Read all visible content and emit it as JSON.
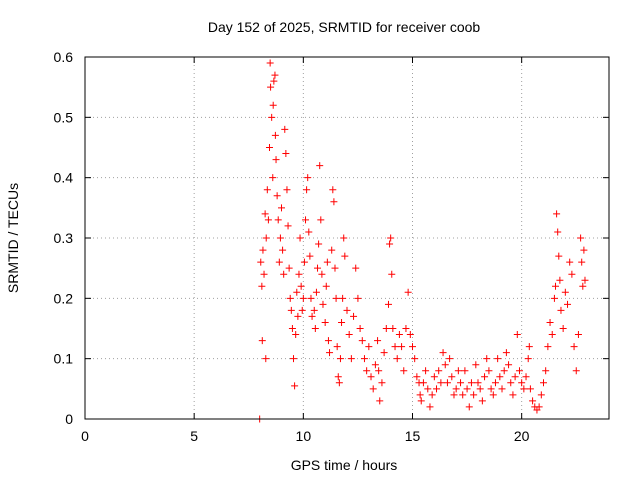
{
  "chart_data": {
    "type": "scatter",
    "title": "Day 152 of 2025, SRMTID for receiver coob",
    "xlabel": "GPS time / hours",
    "ylabel": "SRMTID / TECUs",
    "xlim": [
      0,
      24
    ],
    "ylim": [
      0,
      0.6
    ],
    "xticks": [
      0,
      5,
      10,
      15,
      20
    ],
    "xtick_labels": [
      "0",
      "5",
      "10",
      "15",
      "20"
    ],
    "yticks": [
      0,
      0.1,
      0.2,
      0.3,
      0.4,
      0.5,
      0.6
    ],
    "ytick_labels": [
      "0",
      "0.1",
      "0.2",
      "0.3",
      "0.4",
      "0.5",
      "0.6"
    ],
    "grid": true,
    "marker": "+",
    "color": "#ff0000",
    "series": [
      {
        "name": "SRMTID",
        "points": [
          [
            8.0,
            0.0
          ],
          [
            8.05,
            0.26
          ],
          [
            8.1,
            0.22
          ],
          [
            8.12,
            0.13
          ],
          [
            8.15,
            0.28
          ],
          [
            8.2,
            0.24
          ],
          [
            8.25,
            0.34
          ],
          [
            8.28,
            0.1
          ],
          [
            8.3,
            0.3
          ],
          [
            8.35,
            0.38
          ],
          [
            8.4,
            0.33
          ],
          [
            8.45,
            0.45
          ],
          [
            8.48,
            0.59
          ],
          [
            8.5,
            0.55
          ],
          [
            8.55,
            0.5
          ],
          [
            8.6,
            0.4
          ],
          [
            8.62,
            0.52
          ],
          [
            8.65,
            0.56
          ],
          [
            8.7,
            0.57
          ],
          [
            8.72,
            0.47
          ],
          [
            8.75,
            0.43
          ],
          [
            8.8,
            0.37
          ],
          [
            8.85,
            0.33
          ],
          [
            8.9,
            0.26
          ],
          [
            8.95,
            0.3
          ],
          [
            9.0,
            0.35
          ],
          [
            9.05,
            0.28
          ],
          [
            9.1,
            0.24
          ],
          [
            9.15,
            0.48
          ],
          [
            9.2,
            0.44
          ],
          [
            9.25,
            0.38
          ],
          [
            9.3,
            0.32
          ],
          [
            9.35,
            0.25
          ],
          [
            9.4,
            0.2
          ],
          [
            9.45,
            0.18
          ],
          [
            9.5,
            0.15
          ],
          [
            9.55,
            0.1
          ],
          [
            9.6,
            0.055
          ],
          [
            9.65,
            0.14
          ],
          [
            9.7,
            0.21
          ],
          [
            9.75,
            0.17
          ],
          [
            9.8,
            0.24
          ],
          [
            9.85,
            0.3
          ],
          [
            9.9,
            0.22
          ],
          [
            9.95,
            0.18
          ],
          [
            10.0,
            0.2
          ],
          [
            10.05,
            0.26
          ],
          [
            10.1,
            0.33
          ],
          [
            10.15,
            0.38
          ],
          [
            10.2,
            0.4
          ],
          [
            10.25,
            0.31
          ],
          [
            10.3,
            0.27
          ],
          [
            10.35,
            0.2
          ],
          [
            10.4,
            0.17
          ],
          [
            10.5,
            0.18
          ],
          [
            10.55,
            0.15
          ],
          [
            10.6,
            0.21
          ],
          [
            10.65,
            0.25
          ],
          [
            10.7,
            0.29
          ],
          [
            10.75,
            0.42
          ],
          [
            10.8,
            0.33
          ],
          [
            10.85,
            0.24
          ],
          [
            10.9,
            0.19
          ],
          [
            11.0,
            0.16
          ],
          [
            11.05,
            0.22
          ],
          [
            11.1,
            0.26
          ],
          [
            11.15,
            0.13
          ],
          [
            11.2,
            0.11
          ],
          [
            11.3,
            0.28
          ],
          [
            11.35,
            0.38
          ],
          [
            11.4,
            0.36
          ],
          [
            11.45,
            0.25
          ],
          [
            11.5,
            0.2
          ],
          [
            11.55,
            0.12
          ],
          [
            11.6,
            0.07
          ],
          [
            11.65,
            0.06
          ],
          [
            11.7,
            0.1
          ],
          [
            11.75,
            0.16
          ],
          [
            11.8,
            0.2
          ],
          [
            11.85,
            0.3
          ],
          [
            11.9,
            0.27
          ],
          [
            12.0,
            0.18
          ],
          [
            12.1,
            0.14
          ],
          [
            12.2,
            0.1
          ],
          [
            12.3,
            0.17
          ],
          [
            12.4,
            0.25
          ],
          [
            12.5,
            0.2
          ],
          [
            12.6,
            0.15
          ],
          [
            12.7,
            0.13
          ],
          [
            12.8,
            0.1
          ],
          [
            12.9,
            0.08
          ],
          [
            13.0,
            0.12
          ],
          [
            13.1,
            0.07
          ],
          [
            13.2,
            0.05
          ],
          [
            13.3,
            0.09
          ],
          [
            13.4,
            0.13
          ],
          [
            13.45,
            0.08
          ],
          [
            13.5,
            0.03
          ],
          [
            13.6,
            0.06
          ],
          [
            13.7,
            0.11
          ],
          [
            13.8,
            0.15
          ],
          [
            13.9,
            0.19
          ],
          [
            13.95,
            0.29
          ],
          [
            14.0,
            0.3
          ],
          [
            14.05,
            0.24
          ],
          [
            14.1,
            0.15
          ],
          [
            14.2,
            0.12
          ],
          [
            14.3,
            0.1
          ],
          [
            14.4,
            0.14
          ],
          [
            14.5,
            0.12
          ],
          [
            14.6,
            0.08
          ],
          [
            14.7,
            0.15
          ],
          [
            14.8,
            0.21
          ],
          [
            14.9,
            0.14
          ],
          [
            15.0,
            0.12
          ],
          [
            15.1,
            0.1
          ],
          [
            15.2,
            0.07
          ],
          [
            15.3,
            0.06
          ],
          [
            15.35,
            0.04
          ],
          [
            15.4,
            0.03
          ],
          [
            15.5,
            0.06
          ],
          [
            15.6,
            0.08
          ],
          [
            15.7,
            0.05
          ],
          [
            15.8,
            0.02
          ],
          [
            15.9,
            0.04
          ],
          [
            16.0,
            0.07
          ],
          [
            16.1,
            0.05
          ],
          [
            16.2,
            0.08
          ],
          [
            16.3,
            0.06
          ],
          [
            16.4,
            0.11
          ],
          [
            16.5,
            0.09
          ],
          [
            16.6,
            0.06
          ],
          [
            16.7,
            0.1
          ],
          [
            16.8,
            0.07
          ],
          [
            16.9,
            0.04
          ],
          [
            17.0,
            0.05
          ],
          [
            17.1,
            0.08
          ],
          [
            17.2,
            0.06
          ],
          [
            17.3,
            0.04
          ],
          [
            17.4,
            0.08
          ],
          [
            17.5,
            0.05
          ],
          [
            17.6,
            0.02
          ],
          [
            17.7,
            0.06
          ],
          [
            17.8,
            0.04
          ],
          [
            17.9,
            0.09
          ],
          [
            18.0,
            0.06
          ],
          [
            18.1,
            0.05
          ],
          [
            18.2,
            0.03
          ],
          [
            18.3,
            0.07
          ],
          [
            18.4,
            0.1
          ],
          [
            18.5,
            0.08
          ],
          [
            18.6,
            0.05
          ],
          [
            18.7,
            0.04
          ],
          [
            18.8,
            0.06
          ],
          [
            18.9,
            0.1
          ],
          [
            19.0,
            0.07
          ],
          [
            19.1,
            0.05
          ],
          [
            19.2,
            0.08
          ],
          [
            19.3,
            0.11
          ],
          [
            19.4,
            0.09
          ],
          [
            19.5,
            0.06
          ],
          [
            19.6,
            0.04
          ],
          [
            19.7,
            0.07
          ],
          [
            19.8,
            0.14
          ],
          [
            19.9,
            0.08
          ],
          [
            20.0,
            0.06
          ],
          [
            20.1,
            0.05
          ],
          [
            20.2,
            0.07
          ],
          [
            20.3,
            0.1
          ],
          [
            20.35,
            0.12
          ],
          [
            20.4,
            0.05
          ],
          [
            20.5,
            0.03
          ],
          [
            20.6,
            0.02
          ],
          [
            20.7,
            0.015
          ],
          [
            20.8,
            0.02
          ],
          [
            20.9,
            0.04
          ],
          [
            21.0,
            0.06
          ],
          [
            21.1,
            0.08
          ],
          [
            21.2,
            0.12
          ],
          [
            21.3,
            0.16
          ],
          [
            21.4,
            0.14
          ],
          [
            21.5,
            0.2
          ],
          [
            21.55,
            0.22
          ],
          [
            21.6,
            0.34
          ],
          [
            21.65,
            0.31
          ],
          [
            21.7,
            0.27
          ],
          [
            21.75,
            0.23
          ],
          [
            21.8,
            0.18
          ],
          [
            21.9,
            0.15
          ],
          [
            22.0,
            0.21
          ],
          [
            22.1,
            0.19
          ],
          [
            22.2,
            0.26
          ],
          [
            22.3,
            0.24
          ],
          [
            22.4,
            0.12
          ],
          [
            22.5,
            0.08
          ],
          [
            22.6,
            0.14
          ],
          [
            22.7,
            0.3
          ],
          [
            22.75,
            0.26
          ],
          [
            22.8,
            0.22
          ],
          [
            22.85,
            0.28
          ],
          [
            22.9,
            0.23
          ]
        ]
      }
    ]
  }
}
